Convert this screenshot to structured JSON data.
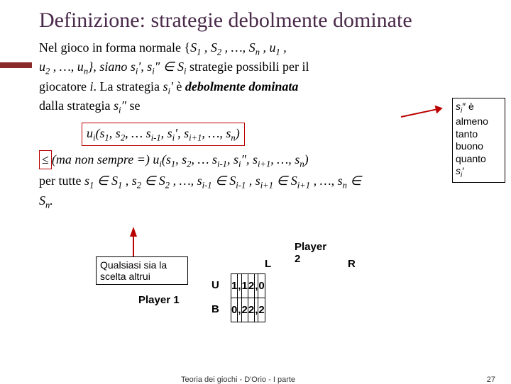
{
  "title": "Definizione: strategie debolmente dominate",
  "def": {
    "line1_a": "Nel gioco in forma normale {",
    "line1_sets": "S<sub>1</sub> , S<sub>2</sub> , …, S<sub>n</sub> , u<sub>1</sub> ,",
    "line2": "u<sub>2</sub> , …, u<sub>n</sub>}, siano ",
    "line2_b": "s<sub>i</sub>′, s<sub>i</sub>″ ∈ S<sub>i</sub>",
    "line2_c": " strategie possibili per il",
    "line3_a": "giocatore ",
    "line3_b": "i",
    "line3_c": ". La strategia ",
    "line3_d": "s<sub>i</sub>′",
    "line3_e": " è ",
    "line3_f": "debolmente dominata",
    "line4": "dalla strategia ",
    "line4_b": "s<sub>i</sub>″",
    "line4_c": " se",
    "formula1": "u<sub>i</sub>(s<sub>1</sub>, s<sub>2</sub>, … s<sub>i-1</sub>, s<sub>i</sub>′, s<sub>i+1</sub>, …, s<sub>n</sub>)",
    "formula2_rest": "(ma non sempre =) u<sub>i</sub>(s<sub>1</sub>, s<sub>2</sub>, … s<sub>i-1</sub>, s<sub>i</sub>″, s<sub>i+1</sub>, …, s<sub>n</sub>)",
    "line5": "per tutte ",
    "line5_b": "s<sub>1</sub> ∈ S<sub>1</sub> , s<sub>2</sub> ∈ S<sub>2</sub> , …, s<sub>i-1</sub> ∈ S<sub>i-1</sub> , s<sub>i+1</sub> ∈ S<sub>i+1</sub> , …, s<sub>n</sub> ∈",
    "line6": "S<sub>n</sub>."
  },
  "sidebox": {
    "l1a": "s",
    "l1b": "i",
    "l1c": "″ è",
    "l2": "almeno",
    "l3": "tanto",
    "l4": "buono",
    "l5": "quanto",
    "l6a": "s",
    "l6b": "i",
    "l6c": "′"
  },
  "qualbox": {
    "l1": "Qualsiasi sia la",
    "l2": "scelta altrui"
  },
  "game": {
    "p2": "Player 2",
    "p1": "Player 1",
    "colL": "L",
    "colR": "R",
    "rowU": "U",
    "rowB": "B",
    "cells": {
      "u_l_a": "1",
      "u_l_b": "1",
      "u_r_a": "2",
      "u_r_b": "0",
      "b_l_a": "0",
      "b_l_b": "2",
      "b_r_a": "2",
      "b_r_b": "2"
    },
    "comma": ","
  },
  "footer": {
    "text": "Teoria dei giochi - D'Orio - I parte",
    "page": "27"
  },
  "colors": {
    "accent": "#8a2a2a",
    "boxborder": "#b00",
    "title": "#4a2a4a"
  }
}
